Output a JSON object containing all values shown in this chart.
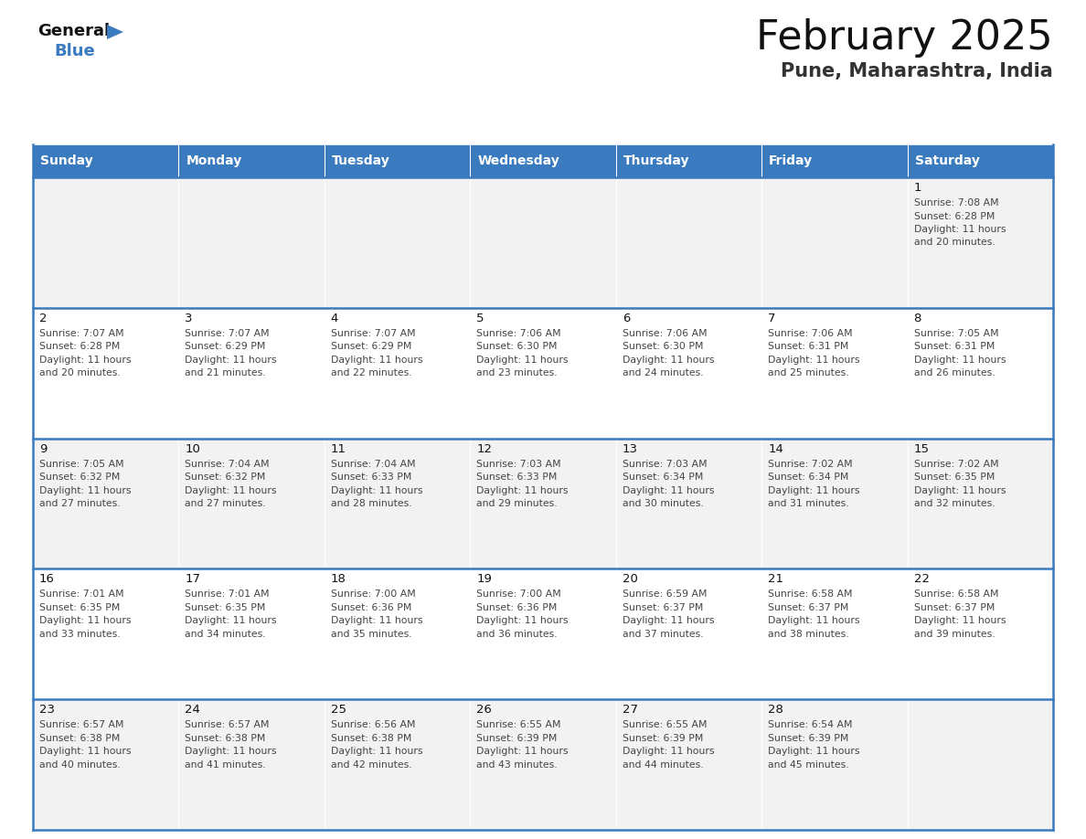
{
  "title": "February 2025",
  "subtitle": "Pune, Maharashtra, India",
  "header_color": "#3a7abf",
  "header_text_color": "#ffffff",
  "day_names": [
    "Sunday",
    "Monday",
    "Tuesday",
    "Wednesday",
    "Thursday",
    "Friday",
    "Saturday"
  ],
  "background_color": "#ffffff",
  "cell_bg_even": "#f2f2f2",
  "cell_bg_odd": "#ffffff",
  "row_line_color": "#3a7abf",
  "days": [
    {
      "day": 1,
      "col": 6,
      "row": 0,
      "sunrise": "7:08 AM",
      "sunset": "6:28 PM",
      "dl1": "11 hours",
      "dl2": "and 20 minutes."
    },
    {
      "day": 2,
      "col": 0,
      "row": 1,
      "sunrise": "7:07 AM",
      "sunset": "6:28 PM",
      "dl1": "11 hours",
      "dl2": "and 20 minutes."
    },
    {
      "day": 3,
      "col": 1,
      "row": 1,
      "sunrise": "7:07 AM",
      "sunset": "6:29 PM",
      "dl1": "11 hours",
      "dl2": "and 21 minutes."
    },
    {
      "day": 4,
      "col": 2,
      "row": 1,
      "sunrise": "7:07 AM",
      "sunset": "6:29 PM",
      "dl1": "11 hours",
      "dl2": "and 22 minutes."
    },
    {
      "day": 5,
      "col": 3,
      "row": 1,
      "sunrise": "7:06 AM",
      "sunset": "6:30 PM",
      "dl1": "11 hours",
      "dl2": "and 23 minutes."
    },
    {
      "day": 6,
      "col": 4,
      "row": 1,
      "sunrise": "7:06 AM",
      "sunset": "6:30 PM",
      "dl1": "11 hours",
      "dl2": "and 24 minutes."
    },
    {
      "day": 7,
      "col": 5,
      "row": 1,
      "sunrise": "7:06 AM",
      "sunset": "6:31 PM",
      "dl1": "11 hours",
      "dl2": "and 25 minutes."
    },
    {
      "day": 8,
      "col": 6,
      "row": 1,
      "sunrise": "7:05 AM",
      "sunset": "6:31 PM",
      "dl1": "11 hours",
      "dl2": "and 26 minutes."
    },
    {
      "day": 9,
      "col": 0,
      "row": 2,
      "sunrise": "7:05 AM",
      "sunset": "6:32 PM",
      "dl1": "11 hours",
      "dl2": "and 27 minutes."
    },
    {
      "day": 10,
      "col": 1,
      "row": 2,
      "sunrise": "7:04 AM",
      "sunset": "6:32 PM",
      "dl1": "11 hours",
      "dl2": "and 27 minutes."
    },
    {
      "day": 11,
      "col": 2,
      "row": 2,
      "sunrise": "7:04 AM",
      "sunset": "6:33 PM",
      "dl1": "11 hours",
      "dl2": "and 28 minutes."
    },
    {
      "day": 12,
      "col": 3,
      "row": 2,
      "sunrise": "7:03 AM",
      "sunset": "6:33 PM",
      "dl1": "11 hours",
      "dl2": "and 29 minutes."
    },
    {
      "day": 13,
      "col": 4,
      "row": 2,
      "sunrise": "7:03 AM",
      "sunset": "6:34 PM",
      "dl1": "11 hours",
      "dl2": "and 30 minutes."
    },
    {
      "day": 14,
      "col": 5,
      "row": 2,
      "sunrise": "7:02 AM",
      "sunset": "6:34 PM",
      "dl1": "11 hours",
      "dl2": "and 31 minutes."
    },
    {
      "day": 15,
      "col": 6,
      "row": 2,
      "sunrise": "7:02 AM",
      "sunset": "6:35 PM",
      "dl1": "11 hours",
      "dl2": "and 32 minutes."
    },
    {
      "day": 16,
      "col": 0,
      "row": 3,
      "sunrise": "7:01 AM",
      "sunset": "6:35 PM",
      "dl1": "11 hours",
      "dl2": "and 33 minutes."
    },
    {
      "day": 17,
      "col": 1,
      "row": 3,
      "sunrise": "7:01 AM",
      "sunset": "6:35 PM",
      "dl1": "11 hours",
      "dl2": "and 34 minutes."
    },
    {
      "day": 18,
      "col": 2,
      "row": 3,
      "sunrise": "7:00 AM",
      "sunset": "6:36 PM",
      "dl1": "11 hours",
      "dl2": "and 35 minutes."
    },
    {
      "day": 19,
      "col": 3,
      "row": 3,
      "sunrise": "7:00 AM",
      "sunset": "6:36 PM",
      "dl1": "11 hours",
      "dl2": "and 36 minutes."
    },
    {
      "day": 20,
      "col": 4,
      "row": 3,
      "sunrise": "6:59 AM",
      "sunset": "6:37 PM",
      "dl1": "11 hours",
      "dl2": "and 37 minutes."
    },
    {
      "day": 21,
      "col": 5,
      "row": 3,
      "sunrise": "6:58 AM",
      "sunset": "6:37 PM",
      "dl1": "11 hours",
      "dl2": "and 38 minutes."
    },
    {
      "day": 22,
      "col": 6,
      "row": 3,
      "sunrise": "6:58 AM",
      "sunset": "6:37 PM",
      "dl1": "11 hours",
      "dl2": "and 39 minutes."
    },
    {
      "day": 23,
      "col": 0,
      "row": 4,
      "sunrise": "6:57 AM",
      "sunset": "6:38 PM",
      "dl1": "11 hours",
      "dl2": "and 40 minutes."
    },
    {
      "day": 24,
      "col": 1,
      "row": 4,
      "sunrise": "6:57 AM",
      "sunset": "6:38 PM",
      "dl1": "11 hours",
      "dl2": "and 41 minutes."
    },
    {
      "day": 25,
      "col": 2,
      "row": 4,
      "sunrise": "6:56 AM",
      "sunset": "6:38 PM",
      "dl1": "11 hours",
      "dl2": "and 42 minutes."
    },
    {
      "day": 26,
      "col": 3,
      "row": 4,
      "sunrise": "6:55 AM",
      "sunset": "6:39 PM",
      "dl1": "11 hours",
      "dl2": "and 43 minutes."
    },
    {
      "day": 27,
      "col": 4,
      "row": 4,
      "sunrise": "6:55 AM",
      "sunset": "6:39 PM",
      "dl1": "11 hours",
      "dl2": "and 44 minutes."
    },
    {
      "day": 28,
      "col": 5,
      "row": 4,
      "sunrise": "6:54 AM",
      "sunset": "6:39 PM",
      "dl1": "11 hours",
      "dl2": "and 45 minutes."
    }
  ],
  "num_rows": 5,
  "num_cols": 7,
  "title_font_size": 32,
  "subtitle_font_size": 15,
  "day_name_font_size": 10,
  "date_font_size": 9.5,
  "info_font_size": 7.8
}
